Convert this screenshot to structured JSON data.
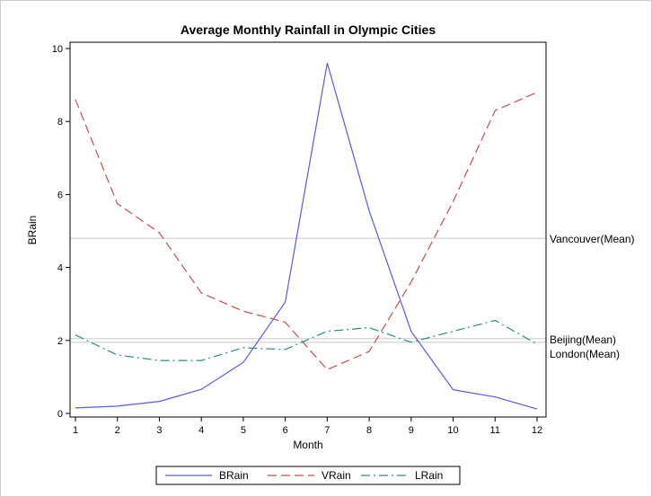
{
  "chart_data": {
    "type": "line",
    "title": "Average Monthly Rainfall in Olympic Cities",
    "xlabel": "Month",
    "ylabel": "BRain",
    "x": [
      1,
      2,
      3,
      4,
      5,
      6,
      7,
      8,
      9,
      10,
      11,
      12
    ],
    "xlim": [
      1,
      12
    ],
    "ylim": [
      0,
      10
    ],
    "yticks": [
      0,
      2,
      4,
      6,
      8,
      10
    ],
    "grid": false,
    "legend_position": "bottom",
    "series": [
      {
        "name": "BRain",
        "color": "#5b5bd6",
        "dash": "solid",
        "values": [
          0.15,
          0.2,
          0.33,
          0.66,
          1.4,
          3.05,
          9.6,
          5.55,
          2.25,
          0.65,
          0.45,
          0.12
        ]
      },
      {
        "name": "VRain",
        "color": "#c0504d",
        "dash": "dashed",
        "values": [
          8.6,
          5.75,
          4.95,
          3.3,
          2.8,
          2.5,
          1.2,
          1.7,
          3.6,
          5.8,
          8.3,
          8.8
        ]
      },
      {
        "name": "LRain",
        "color": "#2e8b7a",
        "dash": "dashdot",
        "values": [
          2.15,
          1.6,
          1.45,
          1.45,
          1.8,
          1.75,
          2.25,
          2.35,
          1.95,
          2.25,
          2.55,
          1.9
        ]
      }
    ],
    "reference_lines": [
      {
        "label": "Vancouver(Mean)",
        "y": 4.8
      },
      {
        "label": "Beijing(Mean)",
        "y": 2.05
      },
      {
        "label": "London(Mean)",
        "y": 1.95
      }
    ]
  }
}
